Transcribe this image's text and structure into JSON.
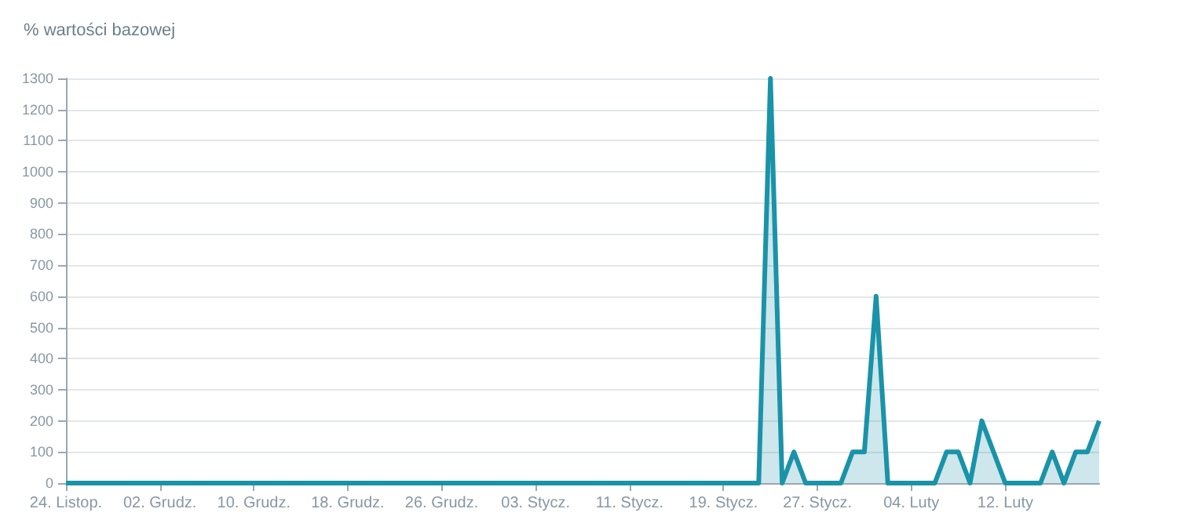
{
  "chart_data": {
    "type": "area",
    "ylabel": "% wartości bazowej",
    "categories": [
      "24. Listop.",
      null,
      null,
      null,
      null,
      null,
      null,
      null,
      "02. Grudz.",
      null,
      null,
      null,
      null,
      null,
      null,
      null,
      "10. Grudz.",
      null,
      null,
      null,
      null,
      null,
      null,
      null,
      "18. Grudz.",
      null,
      null,
      null,
      null,
      null,
      null,
      null,
      "26. Grudz.",
      null,
      null,
      null,
      null,
      null,
      null,
      null,
      "03. Stycz.",
      null,
      null,
      null,
      null,
      null,
      null,
      null,
      "11. Stycz.",
      null,
      null,
      null,
      null,
      null,
      null,
      null,
      "19. Stycz.",
      null,
      null,
      null,
      null,
      null,
      null,
      null,
      "27. Stycz.",
      null,
      null,
      null,
      null,
      null,
      null,
      null,
      "04. Luty",
      null,
      null,
      null,
      null,
      null,
      null,
      null,
      "12. Luty",
      null,
      null,
      null,
      null,
      null,
      null,
      null,
      null
    ],
    "series": [
      {
        "color": "#1a93a8",
        "values": [
          0,
          0,
          0,
          0,
          0,
          0,
          0,
          0,
          0,
          0,
          0,
          0,
          0,
          0,
          0,
          0,
          0,
          0,
          0,
          0,
          0,
          0,
          0,
          0,
          0,
          0,
          0,
          0,
          0,
          0,
          0,
          0,
          0,
          0,
          0,
          0,
          0,
          0,
          0,
          0,
          0,
          0,
          0,
          0,
          0,
          0,
          0,
          0,
          0,
          0,
          0,
          0,
          0,
          0,
          0,
          0,
          0,
          0,
          0,
          0,
          1300,
          0,
          100,
          0,
          0,
          0,
          0,
          100,
          100,
          600,
          0,
          0,
          0,
          0,
          0,
          100,
          100,
          0,
          200,
          100,
          0,
          0,
          0,
          0,
          100,
          0,
          100,
          100,
          200
        ]
      }
    ],
    "ylim": [
      0,
      1300
    ],
    "yticks": [
      0,
      100,
      200,
      300,
      400,
      500,
      600,
      700,
      800,
      900,
      1000,
      1100,
      1200,
      1300
    ],
    "grid": "y",
    "marker": "none",
    "line_style": "solid"
  }
}
